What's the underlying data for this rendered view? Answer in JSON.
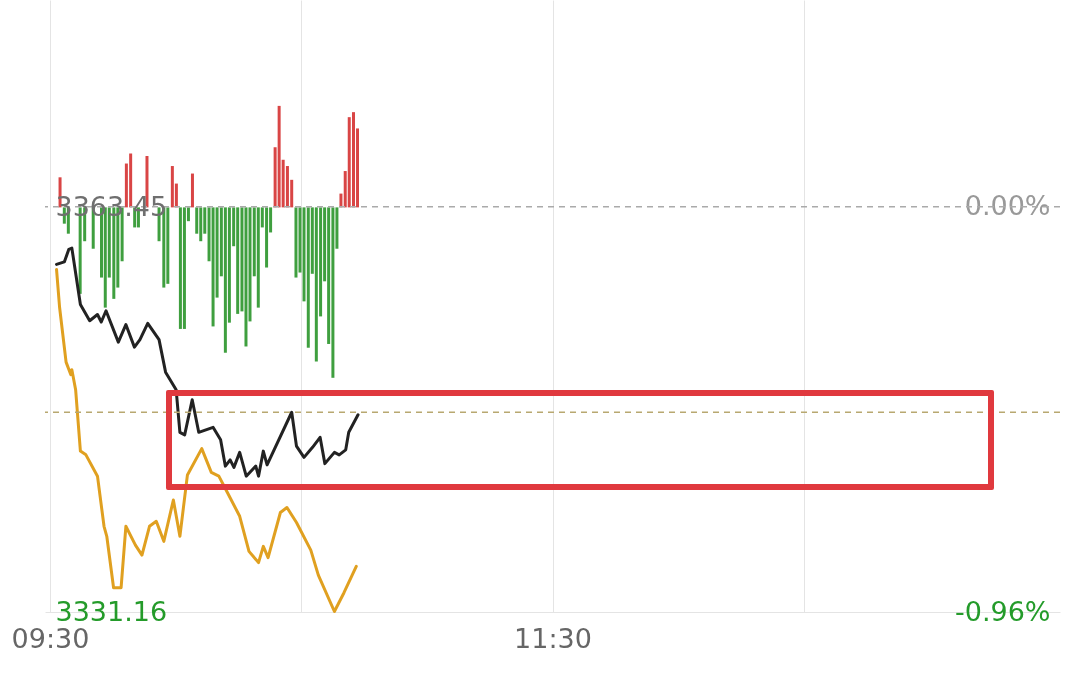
{
  "chart_data": {
    "type": "line",
    "xlim": [
      9.5,
      13.5
    ],
    "xticks": [
      {
        "value": 9.5,
        "label": "09:30"
      },
      {
        "value": 10.5,
        "label": null
      },
      {
        "value": 11.5,
        "label": "11:30"
      },
      {
        "value": 12.5,
        "label": null
      }
    ],
    "ylim": [
      3331.16,
      3380.0
    ],
    "yticks": [
      3363.45,
      3331.16
    ],
    "y2lim": [
      -0.96,
      0.49
    ],
    "y2ticks": [
      {
        "value": 0,
        "label": "0.00%"
      },
      {
        "value": -0.96,
        "label": "-0.96%"
      }
    ],
    "grid": "x",
    "ref_lines": [
      {
        "axis": "y2",
        "value": 0,
        "color": "#aaaaaa",
        "line_style": "dashed"
      },
      {
        "axis": "y",
        "value": 3347.1,
        "color": "#b8a870",
        "line_style": "dashed"
      }
    ],
    "series": [
      {
        "type": "bar",
        "x": [
          9.54,
          9.557,
          9.573,
          9.62,
          9.638,
          9.672,
          9.705,
          9.72,
          9.736,
          9.754,
          9.77,
          9.787,
          9.804,
          9.821,
          9.837,
          9.852,
          9.886,
          9.934,
          9.953,
          9.969,
          9.987,
          10.003,
          10.019,
          10.035,
          10.051,
          10.067,
          10.084,
          10.1,
          10.116,
          10.133,
          10.149,
          10.165,
          10.182,
          10.198,
          10.214,
          10.231,
          10.247,
          10.264,
          10.28,
          10.296,
          10.313,
          10.329,
          10.345,
          10.362,
          10.378,
          10.396,
          10.412,
          10.428,
          10.445,
          10.462,
          10.479,
          10.495,
          10.511,
          10.528,
          10.544,
          10.56,
          10.577,
          10.593,
          10.609,
          10.626,
          10.642,
          10.658,
          10.675,
          10.691,
          10.708,
          10.724
        ],
        "values": [
          2.4,
          -1.3,
          -2.1,
          -6.9,
          -2.7,
          -3.3,
          -5.6,
          -8.0,
          -5.6,
          -7.3,
          -6.4,
          -4.3,
          3.5,
          4.3,
          -1.6,
          -1.6,
          4.1,
          -2.7,
          -6.4,
          -6.1,
          3.3,
          1.9,
          -9.7,
          -9.7,
          -1.1,
          2.7,
          -2.1,
          -2.7,
          -2.1,
          -4.3,
          -9.5,
          -7.2,
          -5.5,
          -11.6,
          -9.2,
          -3.1,
          -8.5,
          -8.3,
          -11.1,
          -9.1,
          -5.5,
          -8.0,
          -1.6,
          -4.8,
          -2.0,
          4.8,
          8.1,
          3.8,
          3.3,
          2.2,
          -5.6,
          -5.2,
          -7.5,
          -11.2,
          -5.3,
          -12.3,
          -8.7,
          -5.9,
          -10.9,
          -13.6,
          -3.3,
          1.1,
          2.9,
          7.2,
          7.6,
          6.3
        ],
        "base": [
          3363.45,
          3363.45,
          3363.45,
          3363.45,
          3363.45,
          3363.45,
          3363.45,
          3363.45,
          3363.45,
          3363.45,
          3363.45,
          3363.45,
          3363.45,
          3363.45,
          3363.45,
          3363.45,
          3363.45,
          3363.45,
          3363.45,
          3363.45,
          3363.45,
          3363.45,
          3363.45,
          3363.45,
          3363.45,
          3363.45,
          3363.45,
          3363.45,
          3363.45,
          3363.45,
          3363.45,
          3363.45,
          3363.45,
          3363.45,
          3363.45,
          3363.45,
          3363.45,
          3363.45,
          3363.45,
          3363.45,
          3363.45,
          3363.45,
          3363.45,
          3363.45,
          3363.45,
          3363.45,
          3363.45,
          3363.45,
          3363.45,
          3363.45,
          3363.45,
          3363.45,
          3363.45,
          3363.45,
          3363.45,
          3363.45,
          3363.45,
          3363.45,
          3363.45,
          3363.45,
          3363.45,
          3363.45,
          3363.45,
          3363.45,
          3363.45,
          3363.45
        ],
        "colors": [
          "#d94545",
          "#3f9f3f",
          "#3f9f3f",
          "#3f9f3f",
          "#3f9f3f",
          "#3f9f3f",
          "#3f9f3f",
          "#3f9f3f",
          "#3f9f3f",
          "#3f9f3f",
          "#3f9f3f",
          "#3f9f3f",
          "#d94545",
          "#d94545",
          "#3f9f3f",
          "#3f9f3f",
          "#d94545",
          "#3f9f3f",
          "#3f9f3f",
          "#3f9f3f",
          "#d94545",
          "#d94545",
          "#3f9f3f",
          "#3f9f3f",
          "#3f9f3f",
          "#d94545",
          "#3f9f3f",
          "#3f9f3f",
          "#3f9f3f",
          "#3f9f3f",
          "#3f9f3f",
          "#3f9f3f",
          "#3f9f3f",
          "#3f9f3f",
          "#3f9f3f",
          "#3f9f3f",
          "#3f9f3f",
          "#3f9f3f",
          "#3f9f3f",
          "#3f9f3f",
          "#3f9f3f",
          "#3f9f3f",
          "#3f9f3f",
          "#3f9f3f",
          "#3f9f3f",
          "#d94545",
          "#d94545",
          "#d94545",
          "#d94545",
          "#d94545",
          "#3f9f3f",
          "#3f9f3f",
          "#3f9f3f",
          "#3f9f3f",
          "#3f9f3f",
          "#3f9f3f",
          "#3f9f3f",
          "#3f9f3f",
          "#3f9f3f",
          "#3f9f3f",
          "#3f9f3f",
          "#d94545",
          "#d94545",
          "#d94545",
          "#d94545",
          "#d94545"
        ]
      },
      {
        "color": "#e0a020",
        "x": [
          9.526,
          9.538,
          9.564,
          9.583,
          9.587,
          9.602,
          9.621,
          9.643,
          9.689,
          9.715,
          9.726,
          9.753,
          9.783,
          9.802,
          9.84,
          9.866,
          9.896,
          9.923,
          9.953,
          9.991,
          10.017,
          10.047,
          10.104,
          10.142,
          10.172,
          10.206,
          10.255,
          10.292,
          10.33,
          10.349,
          10.368,
          10.417,
          10.443,
          10.481,
          10.538,
          10.568,
          10.632,
          10.67,
          10.719
        ],
        "values": [
          3358.5,
          3355.5,
          3351.1,
          3350.1,
          3350.5,
          3348.9,
          3344.0,
          3343.7,
          3342.0,
          3338.0,
          3337.2,
          3333.1,
          3333.1,
          3338.0,
          3336.5,
          3335.7,
          3338.0,
          3338.4,
          3336.8,
          3340.1,
          3337.2,
          3342.1,
          3344.2,
          3342.3,
          3342.0,
          3340.7,
          3338.8,
          3336.0,
          3335.1,
          3336.4,
          3335.5,
          3339.1,
          3339.5,
          3338.3,
          3336.1,
          3334.1,
          3331.2,
          3332.7,
          3334.8
        ]
      },
      {
        "color": "#222222",
        "x": [
          9.526,
          9.557,
          9.575,
          9.587,
          9.621,
          9.658,
          9.689,
          9.704,
          9.723,
          9.772,
          9.802,
          9.836,
          9.858,
          9.889,
          9.934,
          9.96,
          10.002,
          10.017,
          10.036,
          10.066,
          10.092,
          10.149,
          10.179,
          10.198,
          10.217,
          10.232,
          10.255,
          10.281,
          10.319,
          10.33,
          10.349,
          10.364,
          10.462,
          10.481,
          10.511,
          10.545,
          10.575,
          10.594,
          10.632,
          10.651,
          10.677,
          10.689,
          10.726
        ],
        "values": [
          3358.9,
          3359.1,
          3360.1,
          3360.2,
          3355.7,
          3354.4,
          3354.9,
          3354.3,
          3355.2,
          3352.7,
          3354.1,
          3352.3,
          3352.9,
          3354.2,
          3352.9,
          3350.3,
          3348.9,
          3345.5,
          3345.3,
          3348.1,
          3345.5,
          3345.9,
          3344.9,
          3342.8,
          3343.3,
          3342.7,
          3343.9,
          3342.0,
          3342.8,
          3342.0,
          3344.0,
          3342.9,
          3347.1,
          3344.4,
          3343.5,
          3344.3,
          3345.1,
          3343.0,
          3343.9,
          3343.7,
          3344.1,
          3345.5,
          3346.9
        ]
      }
    ]
  }
}
